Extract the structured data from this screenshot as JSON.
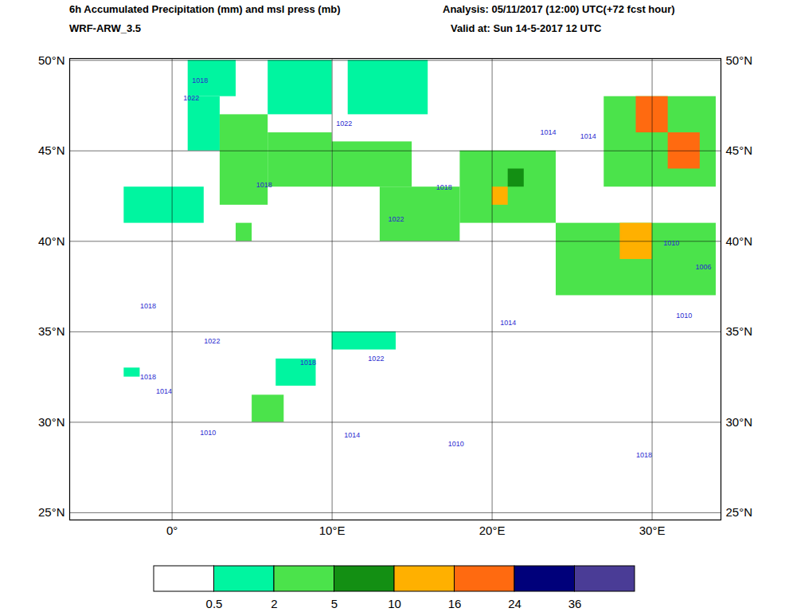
{
  "chart_data": {
    "type": "map",
    "title": "6h Accumulated Precipitation (mm) and msl press (mb)",
    "subtitle": "WRF-ARW_3.5",
    "analysis": "Analysis: 05/11/2017 (12:00) UTC(+72 fcst hour)",
    "valid": "Valid at: Sun 14-5-2017  12 UTC",
    "xlim": [
      -6.4,
      34.3
    ],
    "ylim": [
      24.6,
      50.1
    ],
    "xticks": [
      {
        "value": 0,
        "label": "0°"
      },
      {
        "value": 10,
        "label": "10°E"
      },
      {
        "value": 20,
        "label": "20°E"
      },
      {
        "value": 30,
        "label": "30°E"
      }
    ],
    "yticks": [
      {
        "value": 25,
        "label": "25°N"
      },
      {
        "value": 30,
        "label": "30°N"
      },
      {
        "value": 35,
        "label": "35°N"
      },
      {
        "value": 40,
        "label": "40°N"
      },
      {
        "value": 45,
        "label": "45°N"
      },
      {
        "value": 50,
        "label": "50°N"
      }
    ],
    "grid": true,
    "precipitation_areas": [
      {
        "lon": [
          -3,
          2
        ],
        "lat": [
          41,
          43
        ],
        "value": 1.5
      },
      {
        "lon": [
          1,
          4
        ],
        "lat": [
          48,
          50
        ],
        "value": 1.5
      },
      {
        "lon": [
          1,
          3
        ],
        "lat": [
          45,
          48
        ],
        "value": 1.5
      },
      {
        "lon": [
          3,
          6
        ],
        "lat": [
          42,
          47
        ],
        "value": 3
      },
      {
        "lon": [
          6,
          10
        ],
        "lat": [
          43,
          46
        ],
        "value": 3
      },
      {
        "lon": [
          10,
          15
        ],
        "lat": [
          43,
          45.5
        ],
        "value": 4
      },
      {
        "lon": [
          11,
          16
        ],
        "lat": [
          47,
          50
        ],
        "value": 1.5
      },
      {
        "lon": [
          6,
          10
        ],
        "lat": [
          47,
          50
        ],
        "value": 1.5
      },
      {
        "lon": [
          4,
          5
        ],
        "lat": [
          40,
          41
        ],
        "value": 3
      },
      {
        "lon": [
          13,
          18
        ],
        "lat": [
          40,
          43
        ],
        "value": 3
      },
      {
        "lon": [
          18,
          24
        ],
        "lat": [
          41,
          45
        ],
        "value": 3
      },
      {
        "lon": [
          20,
          21
        ],
        "lat": [
          42,
          43
        ],
        "value": 12
      },
      {
        "lon": [
          21,
          22
        ],
        "lat": [
          43,
          44
        ],
        "value": 7
      },
      {
        "lon": [
          27,
          34
        ],
        "lat": [
          43,
          48
        ],
        "value": 4
      },
      {
        "lon": [
          29,
          31
        ],
        "lat": [
          46,
          48
        ],
        "value": 18
      },
      {
        "lon": [
          31,
          33
        ],
        "lat": [
          44,
          46
        ],
        "value": 16
      },
      {
        "lon": [
          24,
          34
        ],
        "lat": [
          37,
          41
        ],
        "value": 3
      },
      {
        "lon": [
          28,
          30
        ],
        "lat": [
          39,
          41
        ],
        "value": 12
      },
      {
        "lon": [
          5,
          7
        ],
        "lat": [
          30,
          31.5
        ],
        "value": 3
      },
      {
        "lon": [
          6.5,
          9
        ],
        "lat": [
          32,
          33.5
        ],
        "value": 1.5
      },
      {
        "lon": [
          -3,
          -2
        ],
        "lat": [
          32.5,
          33
        ],
        "value": 1
      },
      {
        "lon": [
          10,
          14
        ],
        "lat": [
          34,
          35
        ],
        "value": 1
      }
    ],
    "isobars": {
      "color": "#2a2ad0",
      "labels": [
        {
          "value": 1018,
          "lon": 1.75,
          "lat": 48.9
        },
        {
          "value": 1022,
          "lon": 1.2,
          "lat": 47.9
        },
        {
          "value": 1022,
          "lon": 10.75,
          "lat": 46.5
        },
        {
          "value": 1018,
          "lon": 5.75,
          "lat": 43.1
        },
        {
          "value": 1022,
          "lon": 14,
          "lat": 41.2
        },
        {
          "value": 1018,
          "lon": 17,
          "lat": 43
        },
        {
          "value": 1014,
          "lon": 23.5,
          "lat": 46
        },
        {
          "value": 1014,
          "lon": 26,
          "lat": 45.8
        },
        {
          "value": 1010,
          "lon": 31.2,
          "lat": 39.9
        },
        {
          "value": 1006,
          "lon": 33.2,
          "lat": 38.6
        },
        {
          "value": 1010,
          "lon": 32,
          "lat": 35.9
        },
        {
          "value": 1014,
          "lon": 21,
          "lat": 35.5
        },
        {
          "value": 1018,
          "lon": -1.5,
          "lat": 36.4
        },
        {
          "value": 1022,
          "lon": 2.5,
          "lat": 34.5
        },
        {
          "value": 1022,
          "lon": 12.75,
          "lat": 33.5
        },
        {
          "value": 1018,
          "lon": 8.5,
          "lat": 33.3
        },
        {
          "value": 1018,
          "lon": -1.5,
          "lat": 32.5
        },
        {
          "value": 1014,
          "lon": -0.5,
          "lat": 31.7
        },
        {
          "value": 1010,
          "lon": 2.25,
          "lat": 29.4
        },
        {
          "value": 1014,
          "lon": 11.25,
          "lat": 29.3
        },
        {
          "value": 1010,
          "lon": 17.75,
          "lat": 28.8
        },
        {
          "value": 1018,
          "lon": 29.5,
          "lat": 28.2
        }
      ]
    },
    "colorbar": {
      "bounds": [
        0.5,
        2,
        5,
        10,
        16,
        24,
        36
      ],
      "colors": [
        "#ffffff",
        "#00f5a0",
        "#4be34b",
        "#138f13",
        "#ffb000",
        "#ff6a10",
        "#00007a",
        "#4a3c96"
      ]
    }
  }
}
